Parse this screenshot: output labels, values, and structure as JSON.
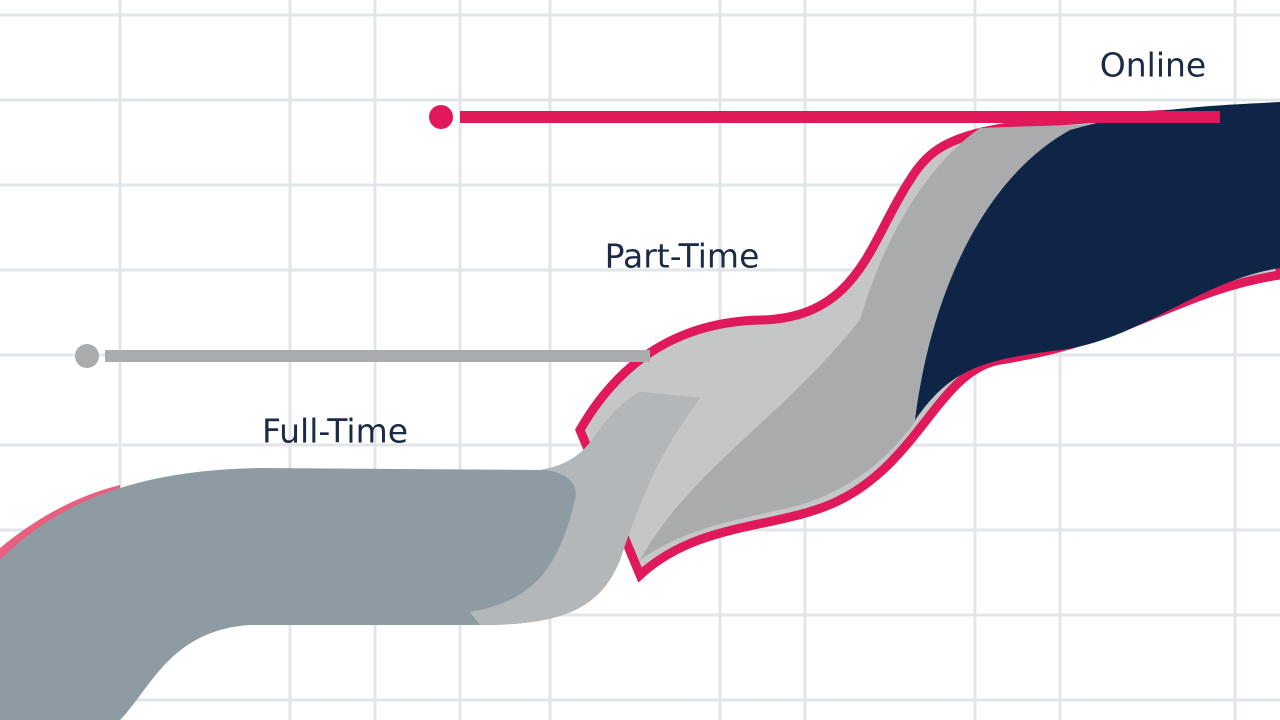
{
  "labels": {
    "online": "Online",
    "part_time": "Part-Time",
    "full_time": "Full-Time"
  }
}
